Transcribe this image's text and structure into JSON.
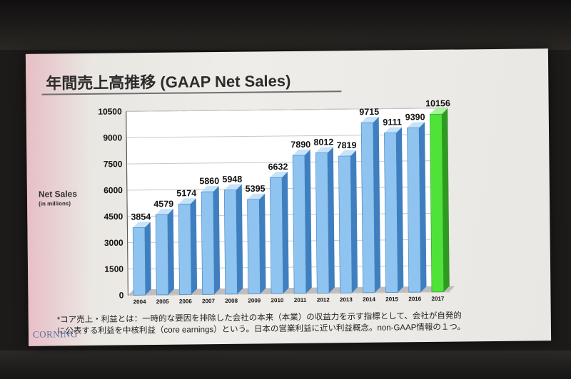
{
  "slide": {
    "title": "年間売上高推移 (GAAP Net Sales)",
    "side_label": "Net Sales",
    "side_sublabel": "(in millions)",
    "note_line1": "*コア売上・利益とは：一時的な要因を排除した会社の本来（本業）の収益力を示す指標として、会社が自発的",
    "note_line2": "に公表する利益を中核利益（core earnings）という。日本の営業利益に近い利益概念。non-GAAP情報の１つ。",
    "logo": "CORNING"
  },
  "chart_data": {
    "type": "bar",
    "title": "年間売上高推移 (GAAP Net Sales)",
    "ylabel": "Net Sales (in millions)",
    "xlabel": "",
    "ylim": [
      0,
      10500
    ],
    "yticks": [
      0,
      1500,
      3000,
      4500,
      6000,
      7500,
      9000,
      10500
    ],
    "grid": true,
    "legend": "none",
    "categories": [
      "2004",
      "2005",
      "2006",
      "2007",
      "2008",
      "2009",
      "2010",
      "2011",
      "2012",
      "2013",
      "2014",
      "2015",
      "2016",
      "2017"
    ],
    "values": [
      3854,
      4579,
      5174,
      5860,
      5948,
      5395,
      6632,
      7890,
      8012,
      7819,
      9715,
      9111,
      9390,
      10156
    ],
    "highlight_index": 13,
    "colors": {
      "bar": "#8ec4ef",
      "bar_side": "#3f7fbf",
      "bar_top": "#c6e3fa",
      "highlight": "#4fe33a",
      "highlight_side": "#2f9a22",
      "highlight_top": "#a6f59a",
      "plot_bg": "#ffffff",
      "grid": "#c8c8c8",
      "label": "#111111"
    }
  }
}
